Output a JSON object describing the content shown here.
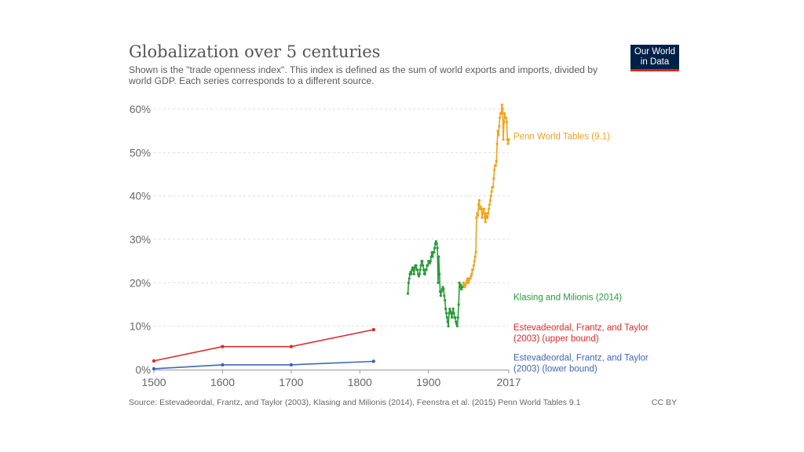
{
  "header": {
    "title": "Globalization over 5 centuries",
    "subtitle": "Shown is the \"trade openness index\". This index is defined as the sum of world exports and imports, divided by world GDP. Each series corresponds to a different source.",
    "logo_line1": "Our World",
    "logo_line2": "in Data"
  },
  "footer": {
    "source": "Source: Estevadeordal, Frantz, and Taylor (2003), Klasing and Milionis (2014), Feenstra et al. (2015) Penn World Tables 9.1",
    "license": "CC BY"
  },
  "colors": {
    "upper": "#d62d2d",
    "lower": "#3e66b5",
    "klasing": "#2a9a3a",
    "penn": "#efa41c"
  },
  "chart_data": {
    "type": "line",
    "title": "Globalization over 5 centuries",
    "xlabel": "",
    "ylabel": "",
    "xlim": [
      1500,
      2017
    ],
    "ylim": [
      0,
      60
    ],
    "x_ticks": [
      "1500",
      "1600",
      "1700",
      "1800",
      "1900",
      "2017"
    ],
    "x_tick_values": [
      1500,
      1600,
      1700,
      1800,
      1900,
      2017
    ],
    "y_ticks": [
      "0%",
      "10%",
      "20%",
      "30%",
      "40%",
      "50%",
      "60%"
    ],
    "y_tick_values": [
      0,
      10,
      20,
      30,
      40,
      50,
      60
    ],
    "grid": true,
    "series": [
      {
        "name": "Penn World Tables (9.1)",
        "label_lines": [
          "Penn World Tables (9.1)"
        ],
        "color_key": "penn",
        "label_y": 53,
        "markers": true,
        "x": [
          1950,
          1951,
          1952,
          1953,
          1954,
          1955,
          1956,
          1957,
          1958,
          1959,
          1960,
          1961,
          1962,
          1963,
          1964,
          1965,
          1966,
          1967,
          1968,
          1969,
          1970,
          1971,
          1972,
          1973,
          1974,
          1975,
          1976,
          1977,
          1978,
          1979,
          1980,
          1981,
          1982,
          1983,
          1984,
          1985,
          1986,
          1987,
          1988,
          1989,
          1990,
          1991,
          1992,
          1993,
          1994,
          1995,
          1996,
          1997,
          1998,
          1999,
          2000,
          2001,
          2002,
          2003,
          2004,
          2005,
          2006,
          2007,
          2008,
          2009,
          2010,
          2011,
          2012,
          2013,
          2014,
          2015,
          2016,
          2017
        ],
        "y": [
          19,
          20,
          19.5,
          19,
          19.5,
          20,
          20.5,
          21,
          20,
          20.5,
          21,
          21,
          21.5,
          22,
          23,
          23,
          24,
          25,
          26,
          27,
          35,
          36,
          35.5,
          38,
          39,
          37,
          37.5,
          37,
          35,
          36,
          37,
          37,
          35,
          34,
          36,
          35,
          35,
          36,
          37,
          38,
          39,
          40,
          41,
          42,
          42,
          44,
          46,
          47,
          47,
          48,
          52,
          55,
          54,
          56,
          58,
          59,
          59,
          61,
          60,
          53,
          57,
          59,
          58,
          58,
          57,
          53,
          52,
          53
        ]
      },
      {
        "name": "Klasing and Milionis (2014)",
        "label_lines": [
          "Klasing and Milionis (2014)"
        ],
        "color_key": "klasing",
        "label_y": 16,
        "markers": true,
        "x": [
          1870,
          1871,
          1872,
          1873,
          1874,
          1875,
          1876,
          1877,
          1878,
          1879,
          1880,
          1881,
          1882,
          1883,
          1884,
          1885,
          1886,
          1887,
          1888,
          1889,
          1890,
          1891,
          1892,
          1893,
          1894,
          1895,
          1896,
          1897,
          1898,
          1899,
          1900,
          1901,
          1902,
          1903,
          1904,
          1905,
          1906,
          1907,
          1908,
          1909,
          1910,
          1911,
          1912,
          1913,
          1914,
          1915,
          1916,
          1917,
          1918,
          1919,
          1920,
          1921,
          1922,
          1923,
          1924,
          1925,
          1926,
          1927,
          1928,
          1929,
          1930,
          1931,
          1932,
          1933,
          1934,
          1935,
          1936,
          1937,
          1938,
          1939,
          1940,
          1941,
          1942,
          1943,
          1944,
          1945,
          1946,
          1947,
          1948,
          1949
        ],
        "y": [
          17.5,
          20,
          21,
          22,
          22.5,
          22,
          23,
          23.5,
          23,
          22,
          23.5,
          24,
          24,
          23,
          23,
          22,
          21.5,
          22,
          23,
          24,
          25,
          25,
          24,
          23,
          22,
          22,
          23,
          23,
          24,
          24,
          25,
          25,
          24.5,
          25,
          26,
          27,
          26,
          27,
          27,
          28,
          29,
          29.5,
          29,
          28,
          20,
          26,
          22,
          18,
          17,
          18,
          18.5,
          19,
          18.5,
          17,
          16,
          14,
          13,
          12,
          11,
          10,
          13,
          14,
          13.5,
          13,
          12,
          13,
          14,
          13,
          12,
          12,
          11,
          10.5,
          10,
          12,
          15,
          20,
          19,
          19.5,
          18.5,
          19
        ]
      },
      {
        "name": "Estevadeordal, Frantz, and Taylor (2003) (upper bound)",
        "label_lines": [
          "Estevadeordal, Frantz, and Taylor",
          "(2003) (upper bound)"
        ],
        "color_key": "upper",
        "label_y": 9,
        "markers": true,
        "x": [
          1500,
          1600,
          1700,
          1820
        ],
        "y": [
          2,
          5.3,
          5.3,
          9.2
        ]
      },
      {
        "name": "Estevadeordal, Frantz, and Taylor (2003) (lower bound)",
        "label_lines": [
          "Estevadeordal, Frantz, and Taylor",
          "(2003) (lower bound)"
        ],
        "color_key": "lower",
        "label_y": 2.1,
        "markers": true,
        "x": [
          1500,
          1600,
          1700,
          1820
        ],
        "y": [
          0.2,
          1.1,
          1.1,
          1.9
        ]
      }
    ]
  }
}
